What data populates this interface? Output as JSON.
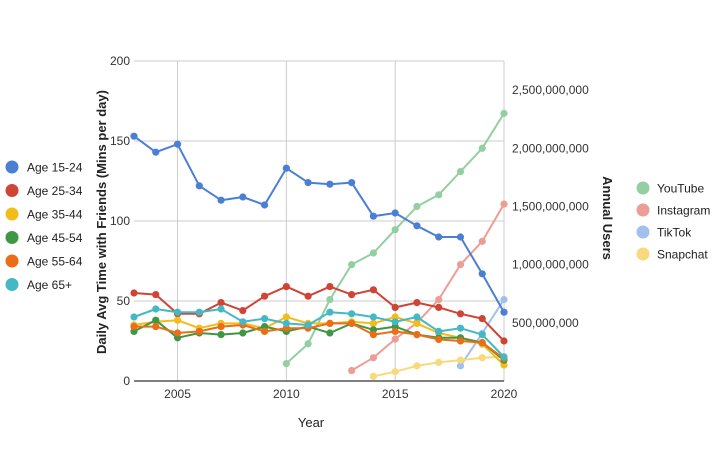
{
  "chart_data": {
    "type": "line",
    "xlabel": "Year",
    "ylabel_left": "Daily Avg Time with Friends (Mins per day)",
    "ylabel_right": "Annual Users",
    "xlim": [
      2003,
      2020
    ],
    "ylim_left": [
      0,
      200
    ],
    "ylim_right": [
      0,
      2750000000
    ],
    "x_ticks": [
      2005,
      2010,
      2015,
      2020
    ],
    "x_tick_labels": [
      "2005",
      "2010",
      "2015",
      "2020"
    ],
    "y_left_ticks": [
      0,
      50,
      100,
      150,
      200
    ],
    "y_left_tick_labels": [
      "0",
      "50",
      "100",
      "150",
      "200"
    ],
    "y_right_ticks": [
      500000000,
      1000000000,
      1500000000,
      2000000000,
      2500000000
    ],
    "y_right_tick_labels": [
      "500,000,000",
      "1,000,000,000",
      "1,500,000,000",
      "2,000,000,000",
      "2,500,000,000"
    ],
    "grid": true,
    "legend_left_placement": "left",
    "legend_right_placement": "right",
    "series_left": [
      {
        "name": "Age 15-24",
        "color": "#4a7fd4",
        "x": [
          2003,
          2004,
          2005,
          2006,
          2007,
          2008,
          2009,
          2010,
          2011,
          2012,
          2013,
          2014,
          2015,
          2016,
          2017,
          2018,
          2019,
          2020
        ],
        "values": [
          153,
          143,
          148,
          122,
          113,
          115,
          110,
          133,
          124,
          123,
          124,
          103,
          105,
          97,
          90,
          90,
          67,
          43
        ]
      },
      {
        "name": "Age 25-34",
        "color": "#cf4435",
        "x": [
          2003,
          2004,
          2005,
          2006,
          2007,
          2008,
          2009,
          2010,
          2011,
          2012,
          2013,
          2014,
          2015,
          2016,
          2017,
          2018,
          2019,
          2020
        ],
        "values": [
          55,
          54,
          42,
          42,
          49,
          44,
          53,
          59,
          53,
          59,
          54,
          57,
          46,
          49,
          46,
          42,
          39,
          25
        ]
      },
      {
        "name": "Age 35-44",
        "color": "#f2bd1a",
        "x": [
          2003,
          2004,
          2005,
          2006,
          2007,
          2008,
          2009,
          2010,
          2011,
          2012,
          2013,
          2014,
          2015,
          2016,
          2017,
          2018,
          2019,
          2020
        ],
        "values": [
          35,
          37,
          38,
          33,
          36,
          36,
          33,
          40,
          36,
          36,
          37,
          36,
          40,
          36,
          30,
          27,
          23,
          10
        ]
      },
      {
        "name": "Age 45-54",
        "color": "#3f9745",
        "x": [
          2003,
          2004,
          2005,
          2006,
          2007,
          2008,
          2009,
          2010,
          2011,
          2012,
          2013,
          2014,
          2015,
          2016,
          2017,
          2018,
          2019,
          2020
        ],
        "values": [
          31,
          38,
          27,
          30,
          29,
          30,
          34,
          31,
          34,
          30,
          36,
          32,
          34,
          29,
          27,
          27,
          24,
          13
        ]
      },
      {
        "name": "Age 55-64",
        "color": "#ec6d17",
        "x": [
          2003,
          2004,
          2005,
          2006,
          2007,
          2008,
          2009,
          2010,
          2011,
          2012,
          2013,
          2014,
          2015,
          2016,
          2017,
          2018,
          2019,
          2020
        ],
        "values": [
          34,
          34,
          30,
          31,
          34,
          35,
          31,
          33,
          33,
          36,
          36,
          29,
          31,
          29,
          26,
          25,
          24,
          14
        ]
      },
      {
        "name": "Age 65+",
        "color": "#44b8c4",
        "x": [
          2003,
          2004,
          2005,
          2006,
          2007,
          2008,
          2009,
          2010,
          2011,
          2012,
          2013,
          2014,
          2015,
          2016,
          2017,
          2018,
          2019,
          2020
        ],
        "values": [
          40,
          45,
          43,
          43,
          45,
          37,
          39,
          36,
          35,
          43,
          42,
          40,
          37,
          40,
          31,
          33,
          29,
          15
        ]
      }
    ],
    "series_right": [
      {
        "name": "YouTube",
        "color": "#93cfa0",
        "x": [
          2010,
          2011,
          2012,
          2013,
          2014,
          2015,
          2016,
          2017,
          2018,
          2019,
          2020
        ],
        "values": [
          150000000,
          320000000,
          700000000,
          1000000000,
          1100000000,
          1300000000,
          1500000000,
          1600000000,
          1800000000,
          2000000000,
          2300000000
        ]
      },
      {
        "name": "Instagram",
        "color": "#ec9d95",
        "x": [
          2013,
          2014,
          2015,
          2016,
          2017,
          2018,
          2019,
          2020
        ],
        "values": [
          90000000,
          200000000,
          360000000,
          500000000,
          700000000,
          1000000000,
          1200000000,
          1520000000
        ]
      },
      {
        "name": "TikTok",
        "color": "#a3bfee",
        "x": [
          2018,
          2019,
          2020
        ],
        "values": [
          130000000,
          410000000,
          700000000
        ]
      },
      {
        "name": "Snapchat",
        "color": "#f8d97c",
        "x": [
          2014,
          2015,
          2016,
          2017,
          2018,
          2019,
          2020
        ],
        "values": [
          40000000,
          80000000,
          130000000,
          160000000,
          180000000,
          200000000,
          210000000
        ]
      }
    ]
  }
}
